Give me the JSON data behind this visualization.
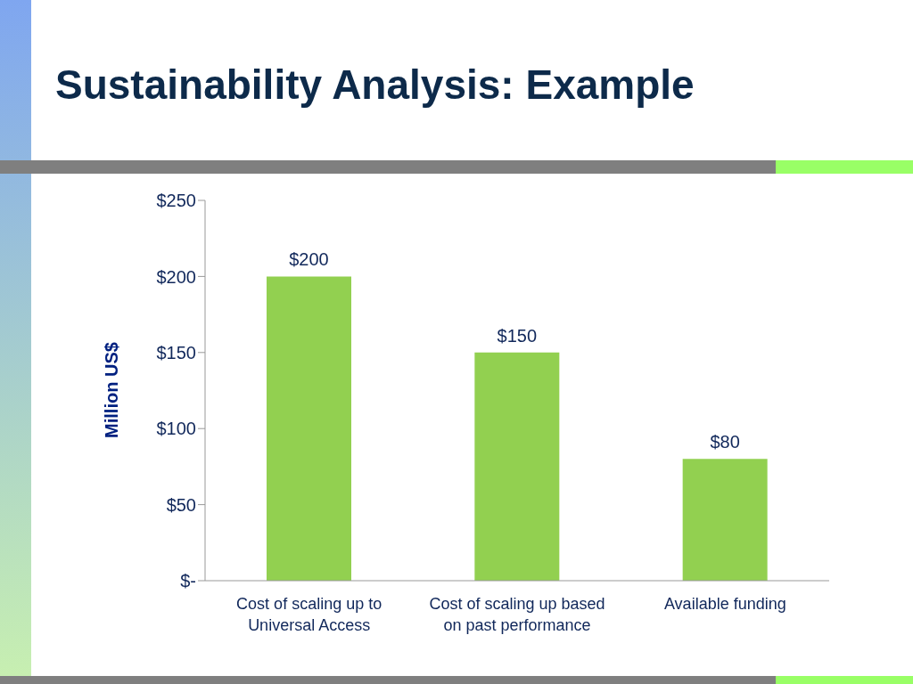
{
  "chart_data": {
    "type": "bar",
    "title": "Sustainability Analysis: Example",
    "ylabel": "Million US$",
    "categories": [
      "Cost of scaling up to Universal Access",
      "Cost of scaling up based on past performance",
      "Available funding"
    ],
    "values": [
      200,
      150,
      80
    ],
    "color": "#92d050",
    "value_labels": [
      "$200",
      "$150",
      "$80"
    ],
    "ylim": [
      0,
      250
    ],
    "yticks": [
      {
        "value": 0,
        "label": "$-"
      },
      {
        "value": 50,
        "label": "$50"
      },
      {
        "value": 100,
        "label": "$100"
      },
      {
        "value": 150,
        "label": "$150"
      },
      {
        "value": 200,
        "label": "$200"
      },
      {
        "value": 250,
        "label": "$250"
      }
    ],
    "grid": false,
    "legend": false
  }
}
